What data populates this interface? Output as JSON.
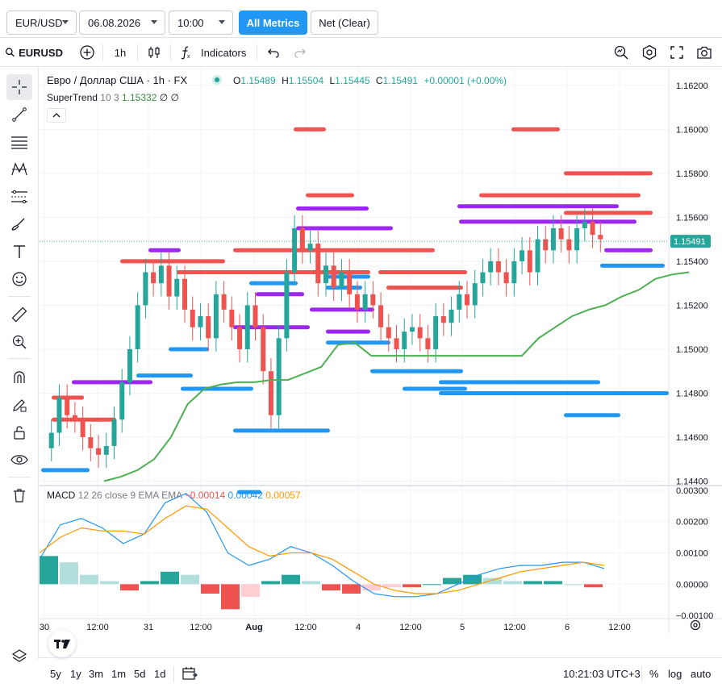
{
  "controls": {
    "symbol": "EUR/USD",
    "date": "06.08.2026",
    "time": "10:00",
    "all_metrics": "All Metrics",
    "net": "Net (Clear)"
  },
  "toolbar": {
    "symbol": "EURUSD",
    "interval": "1h",
    "indicators": "Indicators"
  },
  "legend": {
    "title": "Евро / Доллар США · 1h · FX",
    "o_label": "O",
    "o": "1.15489",
    "h_label": "H",
    "h": "1.15504",
    "l_label": "L",
    "l": "1.15445",
    "c_label": "C",
    "c": "1.15491",
    "change": "+0.00001 (+0.00%)",
    "supertrend_name": "SuperTrend",
    "supertrend_params": "10 3",
    "supertrend_value": "1.15332",
    "supertrend_extra": "∅ ∅",
    "macd_name": "MACD",
    "macd_params": "12 26 close 9 EMA EMA",
    "macd_hist": "−0.00014",
    "macd_line": "0.00042",
    "macd_signal": "0.00057"
  },
  "price_axis": [
    "1.16200",
    "1.16000",
    "1.15800",
    "1.15600",
    "1.15400",
    "1.15200",
    "1.15000",
    "1.14800",
    "1.14600",
    "1.14400"
  ],
  "price_tag": "1.15491",
  "macd_axis": [
    "0.00300",
    "0.00200",
    "0.00100",
    "0.00000",
    "−0.00100"
  ],
  "time_axis": [
    "30",
    "12:00",
    "31",
    "12:00",
    "Aug",
    "12:00",
    "4",
    "12:00",
    "5",
    "12:00",
    "6",
    "12:00"
  ],
  "bottom": {
    "ranges": [
      "5y",
      "1y",
      "3m",
      "1m",
      "5d",
      "1d"
    ],
    "clock": "10:21:03 UTC+3",
    "percent": "%",
    "log": "log",
    "auto": "auto"
  },
  "colors": {
    "up": "#26a69a",
    "down": "#ef5350",
    "accent": "#2196f3",
    "purple": "#9c27f0",
    "supertrend": "#4caf50",
    "signal": "#ff9800"
  },
  "chart_data": {
    "type": "candlestick",
    "symbol_interval": "1h",
    "price_range": [
      1.1438,
      1.1628
    ],
    "macd_range": [
      -0.0011,
      0.0031
    ],
    "price_series_close": [
      1.1455,
      1.1462,
      1.1478,
      1.147,
      1.1468,
      1.146,
      1.1455,
      1.1452,
      1.1456,
      1.1468,
      1.1485,
      1.15,
      1.152,
      1.1535,
      1.153,
      1.1538,
      1.1524,
      1.1532,
      1.1518,
      1.151,
      1.1515,
      1.1505,
      1.1525,
      1.1518,
      1.151,
      1.15,
      1.152,
      1.151,
      1.149,
      1.147,
      1.1505,
      1.1535,
      1.1555,
      1.1545,
      1.1548,
      1.153,
      1.1538,
      1.1528,
      1.1535,
      1.1525,
      1.1518,
      1.1525,
      1.152,
      1.151,
      1.1505,
      1.15,
      1.1508,
      1.151,
      1.1505,
      1.15,
      1.1515,
      1.1512,
      1.1518,
      1.1525,
      1.152,
      1.153,
      1.1535,
      1.154,
      1.1535,
      1.153,
      1.154,
      1.1545,
      1.1535,
      1.155,
      1.1545,
      1.1555,
      1.155,
      1.1545,
      1.1555,
      1.1558,
      1.1552,
      1.155
    ],
    "supertrend": [
      1.144,
      1.1442,
      1.1445,
      1.145,
      1.146,
      1.1475,
      1.1482,
      1.1484,
      1.1485,
      1.1485,
      1.1486,
      1.1486,
      1.1489,
      1.1492,
      1.1502,
      1.1503,
      1.1497,
      1.1497,
      1.1497,
      1.1497,
      1.1497,
      1.1497,
      1.1497,
      1.1497,
      1.1497,
      1.1497,
      1.1505,
      1.151,
      1.1515,
      1.1518,
      1.152,
      1.1524,
      1.1527,
      1.1532,
      1.1534,
      1.1535
    ],
    "macd_line": [
      0.0008,
      0.0019,
      0.0021,
      0.0018,
      0.0013,
      0.0016,
      0.0026,
      0.0029,
      0.0023,
      0.001,
      0.0006,
      0.0008,
      0.0012,
      0.001,
      0.0006,
      0.0001,
      -0.0003,
      -0.0004,
      -0.0004,
      -0.0003,
      0.0,
      0.0003,
      0.0005,
      0.0006,
      0.0006,
      0.0007,
      0.0007,
      0.0005
    ],
    "macd_signal": [
      0.001,
      0.0015,
      0.0018,
      0.0017,
      0.0017,
      0.0016,
      0.0021,
      0.0025,
      0.0024,
      0.0018,
      0.0012,
      0.0009,
      0.001,
      0.001,
      0.0008,
      0.0004,
      0.0,
      -0.0002,
      -0.0003,
      -0.0003,
      -0.0002,
      0.0,
      0.0002,
      0.0004,
      0.0005,
      0.0006,
      0.0007,
      0.0006
    ],
    "macd_hist": [
      0.0009,
      0.0007,
      0.0003,
      0.0001,
      -0.0002,
      0.0001,
      0.0004,
      0.0003,
      -0.0003,
      -0.0008,
      -0.0004,
      0.0001,
      0.0003,
      0.0001,
      -0.0002,
      -0.0003,
      -0.0002,
      -0.0001,
      -0.0001,
      0.0,
      0.0002,
      0.0003,
      0.0002,
      0.0001,
      0.0001,
      0.0001,
      0.0,
      -0.0001
    ],
    "zones_red": [
      [
        15,
        1.1478,
        40
      ],
      [
        15,
        1.1468,
        80
      ],
      [
        100,
        1.154,
        130
      ],
      [
        170,
        1.1535,
        240
      ],
      [
        240,
        1.1545,
        250
      ],
      [
        315,
        1.16,
        40
      ],
      [
        330,
        1.157,
        60
      ],
      [
        350,
        1.1555,
        80
      ],
      [
        420,
        1.1535,
        110
      ],
      [
        430,
        1.1528,
        95
      ],
      [
        545,
        1.157,
        200
      ],
      [
        585,
        1.16,
        60
      ],
      [
        650,
        1.158,
        110
      ],
      [
        650,
        1.1562,
        110
      ]
    ],
    "zones_purple": [
      [
        40,
        1.1485,
        100
      ],
      [
        135,
        1.1545,
        40
      ],
      [
        240,
        1.151,
        95
      ],
      [
        268,
        1.1525,
        60
      ],
      [
        318,
        1.1564,
        90
      ],
      [
        318,
        1.1555,
        120
      ],
      [
        335,
        1.1518,
        80
      ],
      [
        355,
        1.1508,
        55
      ],
      [
        518,
        1.1565,
        200
      ],
      [
        520,
        1.1558,
        220
      ],
      [
        700,
        1.1545,
        60
      ]
    ],
    "zones_blue": [
      [
        2,
        1.1445,
        60
      ],
      [
        120,
        1.1488,
        70
      ],
      [
        175,
        1.1482,
        90
      ],
      [
        160,
        1.15,
        50
      ],
      [
        240,
        1.1463,
        120
      ],
      [
        245,
        1.1435,
        30
      ],
      [
        260,
        1.153,
        60
      ],
      [
        355,
        1.1533,
        55
      ],
      [
        355,
        1.1528,
        45
      ],
      [
        355,
        1.1503,
        80
      ],
      [
        410,
        1.149,
        115
      ],
      [
        450,
        1.1482,
        80
      ],
      [
        495,
        1.1485,
        200
      ],
      [
        495,
        1.148,
        215
      ],
      [
        650,
        1.147,
        70
      ],
      [
        690,
        1.148,
        90
      ],
      [
        695,
        1.1538,
        80
      ]
    ]
  }
}
